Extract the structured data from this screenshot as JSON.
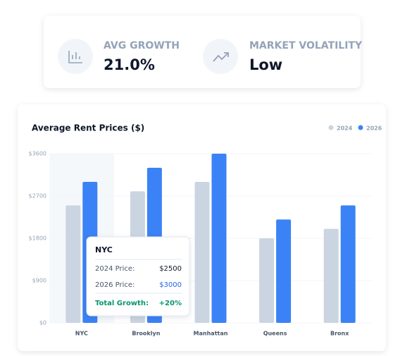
{
  "stats": [
    {
      "label": "AVG GROWTH",
      "value": "21.0%"
    },
    {
      "label": "MARKET VOLATILITY",
      "value": "Low"
    }
  ],
  "chart_data": {
    "type": "bar",
    "title": "Average Rent Prices ($)",
    "categories": [
      "NYC",
      "Brooklyn",
      "Manhattan",
      "Queens",
      "Bronx"
    ],
    "series": [
      {
        "name": "2024",
        "color": "#cbd5e1",
        "values": [
          2500,
          2800,
          3000,
          1800,
          2000
        ]
      },
      {
        "name": "2026",
        "color": "#3b82f6",
        "values": [
          3000,
          3300,
          3600,
          2200,
          2500
        ]
      }
    ],
    "ylim": [
      0,
      3600
    ],
    "yticks": [
      {
        "value": 0,
        "label": "$0"
      },
      {
        "value": 900,
        "label": "$900"
      },
      {
        "value": 1800,
        "label": "$1800"
      },
      {
        "value": 2700,
        "label": "$2700"
      },
      {
        "value": 3600,
        "label": "$3600"
      }
    ],
    "grid": true,
    "legend": "top-right"
  },
  "tooltip": {
    "title": "NYC",
    "rows": [
      {
        "label": "2024 Price:",
        "value": "$2500"
      },
      {
        "label": "2026 Price:",
        "value": "$3000"
      }
    ],
    "total": {
      "label": "Total Growth:",
      "value": "+20%"
    }
  }
}
